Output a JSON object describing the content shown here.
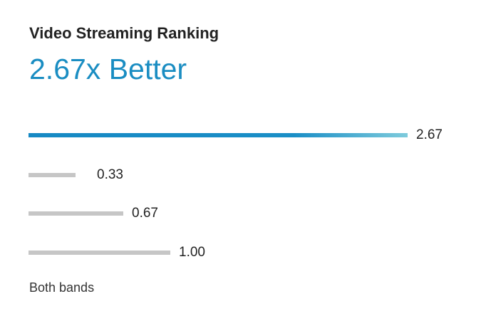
{
  "header": {
    "title": "Video Streaming Ranking",
    "headline": "2.67x Better"
  },
  "chart_data": {
    "type": "bar",
    "orientation": "horizontal",
    "title": "Video Streaming Ranking",
    "values": [
      2.67,
      0.33,
      0.67,
      1.0
    ],
    "value_labels": [
      "2.67",
      "0.33",
      "0.67",
      "1.00"
    ],
    "highlight_index": 0,
    "xlim": [
      0,
      2.67
    ],
    "grid": false
  },
  "footer": {
    "note": "Both bands"
  },
  "colors": {
    "accent": "#1a8dc2",
    "bar_gray": "#c6c6c6",
    "text": "#222222"
  }
}
